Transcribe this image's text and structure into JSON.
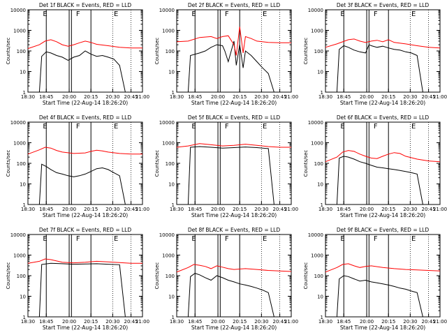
{
  "ylabel": "Counts/sec",
  "xlabel": "Start Time (22-Aug-14 18:26:20)",
  "x_tick_labels": [
    "18:30",
    "18:45",
    "20:00",
    "20:15",
    "20:30",
    "20:45",
    "21:00"
  ],
  "event_markers": [
    "E",
    "F",
    "E"
  ],
  "colors": {
    "events": "#000000",
    "lld": "#ff0000",
    "axes": "#000000"
  },
  "chart_data": [
    {
      "type": "line",
      "title": "Det 1f BLACK = Events, RED = LLD",
      "y_tick_labels": [
        "1",
        "10",
        "100",
        "1000",
        "10000"
      ],
      "ylim": [
        1,
        10000
      ],
      "yscale": "log",
      "series": [
        {
          "name": "Events",
          "x": [
            0.1,
            0.12,
            0.16,
            0.2,
            0.25,
            0.3,
            0.35,
            0.4,
            0.45,
            0.5,
            0.55,
            0.6,
            0.65,
            0.7,
            0.75,
            0.8,
            0.85
          ],
          "y": [
            0,
            55,
            90,
            80,
            60,
            50,
            35,
            50,
            60,
            100,
            70,
            55,
            60,
            50,
            40,
            20,
            0
          ]
        },
        {
          "name": "LLD",
          "x": [
            0,
            0.1,
            0.15,
            0.2,
            0.25,
            0.3,
            0.35,
            0.4,
            0.45,
            0.5,
            0.55,
            0.6,
            0.7,
            0.8,
            0.9,
            1.0
          ],
          "y": [
            130,
            200,
            300,
            350,
            280,
            200,
            170,
            200,
            250,
            300,
            260,
            210,
            180,
            150,
            140,
            140
          ]
        }
      ]
    },
    {
      "type": "line",
      "title": "Det 2f BLACK = Events, RED = LLD",
      "y_tick_labels": [
        "1",
        "10",
        "100",
        "1000",
        "10000"
      ],
      "ylim": [
        1,
        10000
      ],
      "yscale": "log",
      "series": [
        {
          "name": "Events",
          "x": [
            0.1,
            0.12,
            0.2,
            0.25,
            0.3,
            0.35,
            0.4,
            0.42,
            0.45,
            0.5,
            0.52,
            0.55,
            0.58,
            0.6,
            0.65,
            0.7,
            0.75,
            0.8,
            0.85
          ],
          "y": [
            0,
            60,
            80,
            100,
            150,
            200,
            180,
            100,
            30,
            300,
            20,
            200,
            15,
            100,
            60,
            30,
            15,
            8,
            0
          ]
        },
        {
          "name": "LLD",
          "x": [
            0,
            0.1,
            0.2,
            0.3,
            0.35,
            0.4,
            0.45,
            0.5,
            0.52,
            0.55,
            0.58,
            0.6,
            0.65,
            0.7,
            0.8,
            0.9,
            1.0
          ],
          "y": [
            280,
            300,
            450,
            500,
            400,
            500,
            550,
            200,
            60,
            1500,
            80,
            500,
            400,
            300,
            260,
            250,
            250
          ]
        }
      ]
    },
    {
      "type": "line",
      "title": "Det 3f BLACK = Events, RED = LLD",
      "y_tick_labels": [
        "1",
        "10",
        "100",
        "1000",
        "10000"
      ],
      "ylim": [
        1,
        10000
      ],
      "yscale": "log",
      "series": [
        {
          "name": "Events",
          "x": [
            0.1,
            0.12,
            0.16,
            0.2,
            0.25,
            0.3,
            0.35,
            0.38,
            0.4,
            0.45,
            0.5,
            0.55,
            0.6,
            0.65,
            0.7,
            0.75,
            0.8,
            0.85
          ],
          "y": [
            0,
            120,
            180,
            150,
            110,
            90,
            80,
            200,
            180,
            150,
            170,
            140,
            120,
            110,
            90,
            80,
            60,
            0
          ]
        },
        {
          "name": "LLD",
          "x": [
            0,
            0.1,
            0.2,
            0.25,
            0.3,
            0.35,
            0.4,
            0.45,
            0.5,
            0.55,
            0.6,
            0.7,
            0.8,
            0.9,
            1.0
          ],
          "y": [
            150,
            220,
            350,
            380,
            300,
            260,
            300,
            330,
            280,
            350,
            260,
            220,
            180,
            150,
            140
          ]
        }
      ]
    },
    {
      "type": "line",
      "title": "Det 4f BLACK = Events, RED = LLD",
      "y_tick_labels": [
        "1",
        "10",
        "100",
        "1000",
        "10000"
      ],
      "ylim": [
        1,
        10000
      ],
      "yscale": "log",
      "series": [
        {
          "name": "Events",
          "x": [
            0.1,
            0.12,
            0.16,
            0.2,
            0.25,
            0.3,
            0.35,
            0.4,
            0.45,
            0.5,
            0.55,
            0.6,
            0.65,
            0.7,
            0.75,
            0.8,
            0.85
          ],
          "y": [
            0,
            90,
            70,
            50,
            35,
            30,
            25,
            22,
            25,
            30,
            40,
            55,
            60,
            50,
            35,
            25,
            0
          ]
        },
        {
          "name": "LLD",
          "x": [
            0,
            0.1,
            0.15,
            0.2,
            0.25,
            0.3,
            0.4,
            0.5,
            0.55,
            0.6,
            0.65,
            0.7,
            0.8,
            0.9,
            1.0
          ],
          "y": [
            280,
            450,
            600,
            550,
            420,
            350,
            300,
            320,
            380,
            430,
            400,
            350,
            300,
            280,
            280
          ]
        }
      ]
    },
    {
      "type": "line",
      "title": "Det 5f BLACK = Events, RED = LLD",
      "y_tick_labels": [
        "1",
        "10",
        "100",
        "1000",
        "10000"
      ],
      "ylim": [
        1,
        10000
      ],
      "yscale": "log",
      "series": [
        {
          "name": "Events",
          "x": [
            0.1,
            0.12,
            0.2,
            0.3,
            0.4,
            0.5,
            0.6,
            0.7,
            0.8,
            0.85
          ],
          "y": [
            0,
            600,
            650,
            600,
            550,
            580,
            620,
            580,
            520,
            0
          ]
        },
        {
          "name": "LLD",
          "x": [
            0,
            0.1,
            0.2,
            0.3,
            0.4,
            0.5,
            0.6,
            0.7,
            0.8,
            0.9,
            1.0
          ],
          "y": [
            600,
            700,
            900,
            800,
            700,
            750,
            850,
            750,
            650,
            600,
            600
          ]
        }
      ]
    },
    {
      "type": "line",
      "title": "Det 6f BLACK = Events, RED = LLD",
      "y_tick_labels": [
        "1",
        "10",
        "100",
        "1000",
        "10000"
      ],
      "ylim": [
        1,
        10000
      ],
      "yscale": "log",
      "series": [
        {
          "name": "Events",
          "x": [
            0.1,
            0.12,
            0.16,
            0.2,
            0.25,
            0.3,
            0.35,
            0.4,
            0.45,
            0.5,
            0.55,
            0.6,
            0.65,
            0.7,
            0.75,
            0.8,
            0.85
          ],
          "y": [
            0,
            180,
            220,
            200,
            160,
            120,
            100,
            80,
            65,
            60,
            55,
            50,
            45,
            40,
            35,
            30,
            0
          ]
        },
        {
          "name": "LLD",
          "x": [
            0,
            0.1,
            0.15,
            0.2,
            0.25,
            0.3,
            0.35,
            0.4,
            0.45,
            0.5,
            0.55,
            0.6,
            0.65,
            0.7,
            0.8,
            0.9,
            1.0
          ],
          "y": [
            120,
            200,
            350,
            420,
            380,
            280,
            220,
            180,
            170,
            220,
            280,
            330,
            300,
            220,
            160,
            130,
            120
          ]
        }
      ]
    },
    {
      "type": "line",
      "title": "Det 7f BLACK = Events, RED = LLD",
      "y_tick_labels": [
        "1",
        "10",
        "100",
        "1000",
        "10000"
      ],
      "ylim": [
        1,
        10000
      ],
      "yscale": "log",
      "series": [
        {
          "name": "Events",
          "x": [
            0.1,
            0.12,
            0.2,
            0.3,
            0.4,
            0.5,
            0.6,
            0.7,
            0.8,
            0.85
          ],
          "y": [
            0,
            350,
            400,
            380,
            360,
            370,
            380,
            360,
            340,
            0
          ]
        },
        {
          "name": "LLD",
          "x": [
            0,
            0.1,
            0.15,
            0.2,
            0.25,
            0.3,
            0.4,
            0.5,
            0.6,
            0.7,
            0.8,
            0.9,
            1.0
          ],
          "y": [
            400,
            500,
            650,
            600,
            520,
            450,
            420,
            450,
            500,
            470,
            430,
            400,
            400
          ]
        }
      ]
    },
    {
      "type": "line",
      "title": "Det 8f BLACK = Events, RED = LLD",
      "y_tick_labels": [
        "1",
        "10",
        "100",
        "1000",
        "10000"
      ],
      "ylim": [
        1,
        10000
      ],
      "yscale": "log",
      "series": [
        {
          "name": "Events",
          "x": [
            0.1,
            0.12,
            0.16,
            0.2,
            0.25,
            0.3,
            0.35,
            0.4,
            0.45,
            0.5,
            0.55,
            0.6,
            0.65,
            0.7,
            0.75,
            0.8,
            0.85
          ],
          "y": [
            0,
            90,
            130,
            110,
            80,
            60,
            100,
            80,
            60,
            50,
            40,
            35,
            30,
            25,
            20,
            15,
            0
          ]
        },
        {
          "name": "LLD",
          "x": [
            0,
            0.1,
            0.15,
            0.2,
            0.25,
            0.3,
            0.35,
            0.4,
            0.45,
            0.5,
            0.6,
            0.7,
            0.8,
            0.9,
            1.0
          ],
          "y": [
            150,
            250,
            350,
            320,
            280,
            220,
            300,
            260,
            220,
            200,
            220,
            200,
            180,
            170,
            160
          ]
        }
      ]
    },
    {
      "type": "line",
      "title": "Det 9f BLACK = Events, RED = LLD",
      "y_tick_labels": [
        "1",
        "10",
        "100",
        "1000",
        "10000"
      ],
      "ylim": [
        1,
        10000
      ],
      "yscale": "log",
      "series": [
        {
          "name": "Events",
          "x": [
            0.1,
            0.12,
            0.16,
            0.2,
            0.25,
            0.3,
            0.35,
            0.4,
            0.45,
            0.5,
            0.55,
            0.6,
            0.65,
            0.7,
            0.75,
            0.8,
            0.85
          ],
          "y": [
            0,
            70,
            100,
            90,
            70,
            55,
            60,
            50,
            45,
            40,
            35,
            30,
            25,
            22,
            18,
            15,
            0
          ]
        },
        {
          "name": "LLD",
          "x": [
            0,
            0.1,
            0.15,
            0.2,
            0.25,
            0.3,
            0.35,
            0.4,
            0.5,
            0.6,
            0.7,
            0.8,
            0.9,
            1.0
          ],
          "y": [
            150,
            250,
            350,
            380,
            300,
            250,
            280,
            300,
            250,
            220,
            200,
            190,
            180,
            170
          ]
        }
      ]
    }
  ]
}
